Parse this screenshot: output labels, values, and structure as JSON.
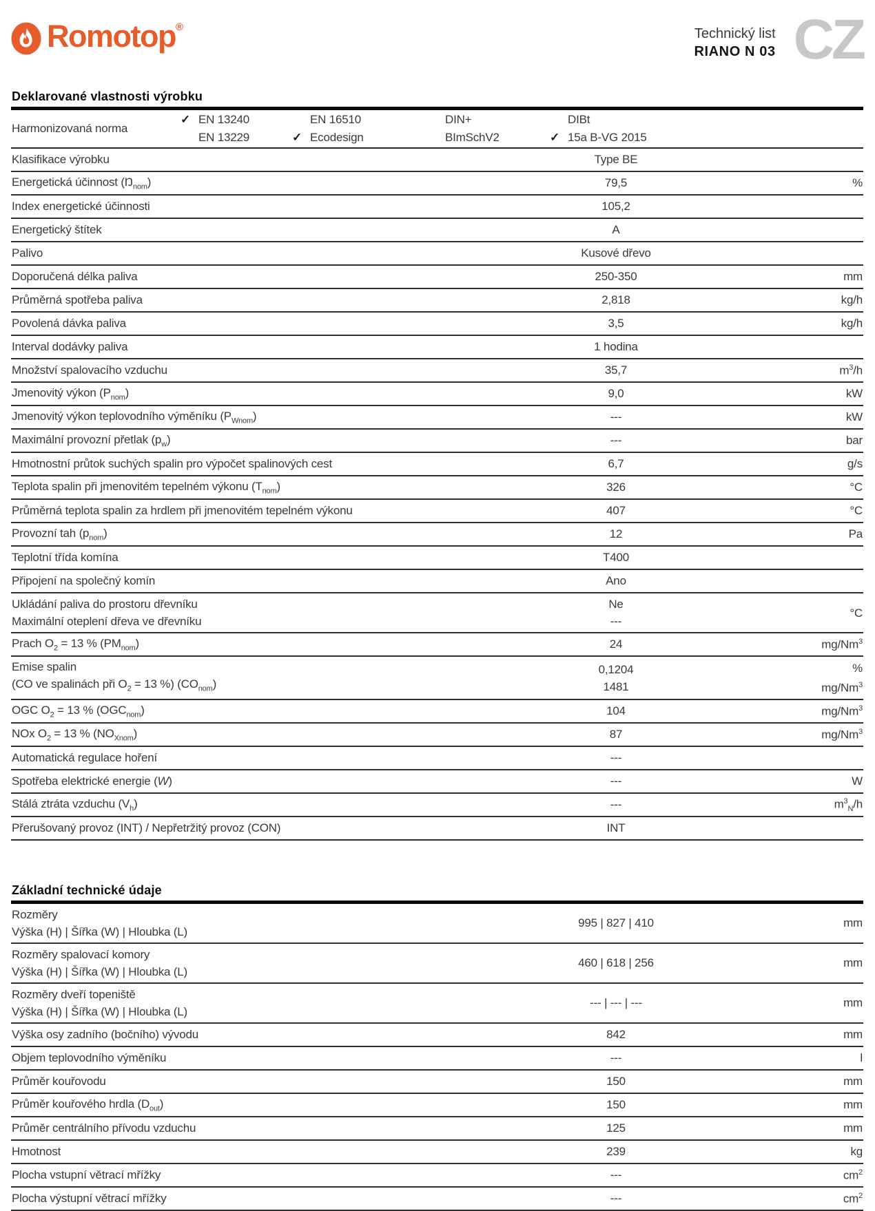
{
  "header": {
    "logo_text": "Romotop",
    "logo_reg": "®",
    "doc_type": "Technický list",
    "product": "RIANO N 03",
    "lang_code": "CZ"
  },
  "colors": {
    "brand_orange": "#e65c2b",
    "lang_gray": "#c6c7c9",
    "text_dark": "#3a3a3c",
    "rule_black": "#0a0a0a"
  },
  "sections": [
    {
      "title": "Deklarované vlastnosti výrobku",
      "norm_row": {
        "label": "Harmonizovaná norma",
        "columns": [
          {
            "items": [
              {
                "checked": true,
                "text": "EN 13240"
              },
              {
                "checked": false,
                "text": "EN 13229"
              }
            ]
          },
          {
            "items": [
              {
                "checked": false,
                "text": "EN 16510"
              },
              {
                "checked": true,
                "text": "Ecodesign"
              }
            ]
          },
          {
            "items": [
              {
                "checked": false,
                "text": "DIN+"
              },
              {
                "checked": false,
                "text": "BImSchV2"
              }
            ]
          },
          {
            "items": [
              {
                "checked": false,
                "text": "DIBt"
              },
              {
                "checked": true,
                "text": "15a B-VG 2015"
              }
            ]
          }
        ]
      },
      "rows": [
        {
          "type": "single",
          "label": "Klasifikace výrobku",
          "value": "Type BE",
          "unit": ""
        },
        {
          "type": "single",
          "label": "Energetická účinnost (Ŋ<sub>nom</sub>)",
          "value": "79,5",
          "unit": "%"
        },
        {
          "type": "single",
          "label": "Index energetické účinnosti",
          "value": "105,2",
          "unit": ""
        },
        {
          "type": "single",
          "label": "Energetický štítek",
          "value": "A",
          "unit": ""
        },
        {
          "type": "single",
          "label": "Palivo",
          "value": "Kusové dřevo",
          "unit": ""
        },
        {
          "type": "single",
          "label": "Doporučená délka paliva",
          "value": "250-350",
          "unit": "mm"
        },
        {
          "type": "single",
          "label": "Průměrná spotřeba paliva",
          "value": "2,818",
          "unit": "kg/h"
        },
        {
          "type": "single",
          "label": "Povolená dávka paliva",
          "value": "3,5",
          "unit": "kg/h"
        },
        {
          "type": "single",
          "label": "Interval dodávky paliva",
          "value": "1 hodina",
          "unit": ""
        },
        {
          "type": "single",
          "label": "Množství spalovacího vzduchu",
          "value": "35,7",
          "unit": "m<sup>3</sup>/h"
        },
        {
          "type": "single",
          "label": "Jmenovitý výkon (P<sub>nom</sub>)",
          "value": "9,0",
          "unit": "kW"
        },
        {
          "type": "single",
          "label": "Jmenovitý výkon teplovodního výměníku (P<sub>Wnom</sub>)",
          "value": "---",
          "unit": "kW"
        },
        {
          "type": "single",
          "label": "Maximální provozní přetlak (p<sub>w</sub>)",
          "value": "---",
          "unit": "bar"
        },
        {
          "type": "single",
          "label": "Hmotnostní průtok suchých spalin pro výpočet spalinových cest",
          "value": "6,7",
          "unit": "g/s"
        },
        {
          "type": "single",
          "label": "Teplota spalin při jmenovitém tepelném výkonu (T<sub>nom</sub>)",
          "value": "326",
          "unit": "°C"
        },
        {
          "type": "single",
          "label": "Průměrná teplota spalin za hrdlem při jmenovitém tepelném výkonu",
          "value": "407",
          "unit": "°C"
        },
        {
          "type": "single",
          "label": "Provozní tah (p<sub>nom</sub>)",
          "value": "12",
          "unit": "Pa"
        },
        {
          "type": "single",
          "label": "Teplotní třída komína",
          "value": "T400",
          "unit": ""
        },
        {
          "type": "single",
          "label": "Připojení na společný komín",
          "value": "Ano",
          "unit": ""
        },
        {
          "type": "double",
          "lines": [
            {
              "label": "Ukládání paliva do prostoru dřevníku",
              "value": "Ne",
              "unit": ""
            },
            {
              "label": "Maximální oteplení dřeva ve dřevníku",
              "value": "---",
              "unit": "°C"
            }
          ]
        },
        {
          "type": "single",
          "label": "Prach O<sub>2</sub> = 13 % (PM<sub>nom</sub>)",
          "value": "24",
          "unit": "mg/Nm<sup>3</sup>"
        },
        {
          "type": "double",
          "lines": [
            {
              "label": "Emise spalin",
              "value": "0,1204",
              "unit": "%"
            },
            {
              "label": "(CO ve spalinách při O<sub>2</sub> = 13 %) (CO<sub>nom</sub>)",
              "value": "1481",
              "unit": "mg/Nm<sup>3</sup>"
            }
          ]
        },
        {
          "type": "single",
          "label": "OGC O<sub>2</sub> = 13 % (OGC<sub>nom</sub>)",
          "value": "104",
          "unit": "mg/Nm<sup>3</sup>"
        },
        {
          "type": "single",
          "label": "NOx O<sub>2</sub> = 13 % (NO<sub>Xnom</sub>)",
          "value": "87",
          "unit": "mg/Nm<sup>3</sup>"
        },
        {
          "type": "single",
          "label": "Automatická regulace hoření",
          "value": "---",
          "unit": ""
        },
        {
          "type": "single",
          "label": "Spotřeba elektrické energie (<i>W</i>)",
          "value": "---",
          "unit": "W"
        },
        {
          "type": "single",
          "label": "Stálá ztráta vzduchu (V<sub>h</sub>)",
          "value": "---",
          "unit": "m<sup>3</sup><sub>N</sub>/h"
        },
        {
          "type": "single",
          "label": "Přerušovaný provoz (INT) / Nepřetržitý provoz (CON)",
          "value": "INT",
          "unit": ""
        }
      ]
    },
    {
      "title": "Základní technické údaje",
      "rows": [
        {
          "type": "stacked",
          "label_lines": [
            "Rozměry",
            "Výška (H) | Šířka (W) | Hloubka (L)"
          ],
          "value": "995 | 827 | 410",
          "unit": "mm"
        },
        {
          "type": "stacked",
          "label_lines": [
            "Rozměry spalovací komory",
            "Výška (H) | Šířka (W) | Hloubka (L)"
          ],
          "value": "460 | 618 | 256",
          "unit": "mm"
        },
        {
          "type": "stacked",
          "label_lines": [
            "Rozměry dveří topeniště",
            "Výška (H) | Šířka (W) | Hloubka (L)"
          ],
          "value": "--- | --- | ---",
          "unit": "mm"
        },
        {
          "type": "single",
          "label": "Výška osy zadního (bočního) vývodu",
          "value": "842",
          "unit": "mm"
        },
        {
          "type": "single",
          "label": "Objem teplovodního výměníku",
          "value": "---",
          "unit": "l"
        },
        {
          "type": "single",
          "label": "Průměr kouřovodu",
          "value": "150",
          "unit": "mm"
        },
        {
          "type": "single",
          "label": "Průměr kouřového hrdla (D<sub>out</sub>)",
          "value": "150",
          "unit": "mm"
        },
        {
          "type": "single",
          "label": "Průměr centrálního přívodu vzduchu",
          "value": "125",
          "unit": "mm"
        },
        {
          "type": "single",
          "label": "Hmotnost",
          "value": "239",
          "unit": "kg"
        },
        {
          "type": "single",
          "label": "Plocha vstupní větrací mřížky",
          "value": "---",
          "unit": "cm<sup>2</sup>"
        },
        {
          "type": "single",
          "label": "Plocha výstupní větrací mřížky",
          "value": "---",
          "unit": "cm<sup>2</sup>"
        }
      ]
    }
  ],
  "icons": {
    "check": "✓",
    "flame": "flame-icon"
  }
}
